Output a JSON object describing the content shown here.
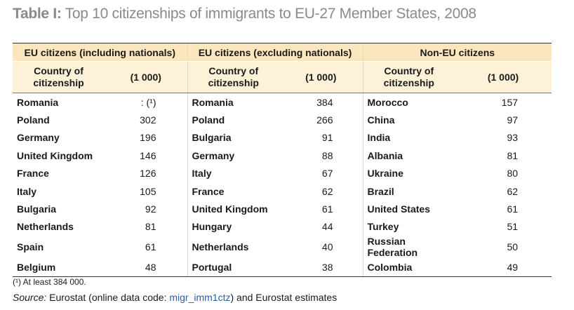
{
  "title": {
    "prefix": "Table I:",
    "text": "Top 10 citizenships of immigrants to EU-27 Member States, 2008"
  },
  "groups": [
    "EU citizens (including nationals)",
    "EU citizens (excluding nationals)",
    "Non-EU citizens"
  ],
  "subheaders": {
    "country": "Country of citizenship",
    "unit": "(1 000)"
  },
  "rows": [
    {
      "c1": "Romania",
      "v1": ": (¹)",
      "c2": "Romania",
      "v2": "384",
      "c3": "Morocco",
      "v3": "157"
    },
    {
      "c1": "Poland",
      "v1": "302",
      "c2": "Poland",
      "v2": "266",
      "c3": "China",
      "v3": "97"
    },
    {
      "c1": "Germany",
      "v1": "196",
      "c2": "Bulgaria",
      "v2": "91",
      "c3": "India",
      "v3": "93"
    },
    {
      "c1": "United Kingdom",
      "v1": "146",
      "c2": "Germany",
      "v2": "88",
      "c3": "Albania",
      "v3": "81"
    },
    {
      "c1": "France",
      "v1": "126",
      "c2": "Italy",
      "v2": "67",
      "c3": "Ukraine",
      "v3": "80"
    },
    {
      "c1": "Italy",
      "v1": "105",
      "c2": "France",
      "v2": "62",
      "c3": "Brazil",
      "v3": "62"
    },
    {
      "c1": "Bulgaria",
      "v1": "92",
      "c2": "United Kingdom",
      "v2": "61",
      "c3": "United States",
      "v3": "61"
    },
    {
      "c1": "Netherlands",
      "v1": "81",
      "c2": "Hungary",
      "v2": "44",
      "c3": "Turkey",
      "v3": "51"
    },
    {
      "c1": "Spain",
      "v1": "61",
      "c2": "Netherlands",
      "v2": "40",
      "c3": "Russian Federation",
      "v3": "50"
    },
    {
      "c1": "Belgium",
      "v1": "48",
      "c2": "Portugal",
      "v2": "38",
      "c3": "Colombia",
      "v3": "49"
    }
  ],
  "footnote": "(¹)  At least 384 000.",
  "source": {
    "label": "Source:",
    "pre": " Eurostat (online data code: ",
    "code": "migr_imm1ctz",
    "post": ") and Eurostat estimates"
  }
}
